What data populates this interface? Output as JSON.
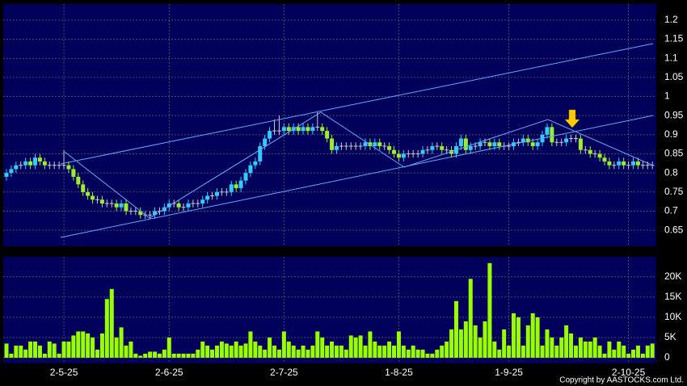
{
  "chart_data": {
    "type": "candlestick",
    "categories": [
      null,
      null,
      null,
      null,
      null,
      null,
      null,
      null,
      null,
      null,
      null,
      null,
      "2-5-25",
      null,
      null,
      null,
      null,
      null,
      null,
      null,
      null,
      null,
      null,
      null,
      null,
      null,
      null,
      null,
      null,
      null,
      null,
      null,
      null,
      null,
      "2-6-25",
      null,
      null,
      null,
      null,
      null,
      null,
      null,
      null,
      null,
      null,
      null,
      null,
      null,
      null,
      null,
      null,
      null,
      null,
      null,
      null,
      null,
      null,
      null,
      "2-7-25",
      null,
      null,
      null,
      null,
      null,
      null,
      null,
      null,
      null,
      null,
      null,
      null,
      null,
      null,
      null,
      null,
      null,
      null,
      null,
      null,
      null,
      null,
      null,
      "1-8-25",
      null,
      null,
      null,
      null,
      null,
      null,
      null,
      null,
      null,
      null,
      null,
      null,
      null,
      null,
      null,
      null,
      null,
      null,
      null,
      null,
      null,
      null,
      "1-9-25",
      null,
      null,
      null,
      null,
      null,
      null,
      null,
      null,
      null,
      null,
      null,
      null,
      null,
      null,
      null,
      null,
      null,
      null,
      null,
      null,
      null,
      null,
      null,
      null,
      "2-10-25",
      null,
      null,
      null,
      null,
      null
    ],
    "open": [
      0.79,
      0.8,
      0.81,
      0.82,
      0.82,
      0.83,
      0.82,
      0.84,
      0.83,
      0.82,
      0.82,
      0.82,
      0.82,
      0.82,
      0.81,
      0.79,
      0.77,
      0.75,
      0.74,
      0.73,
      0.73,
      0.72,
      0.72,
      0.72,
      0.71,
      0.72,
      0.7,
      0.7,
      0.7,
      0.69,
      0.69,
      0.69,
      0.7,
      0.7,
      0.71,
      0.72,
      0.72,
      0.71,
      0.71,
      0.72,
      0.72,
      0.72,
      0.73,
      0.74,
      0.74,
      0.75,
      0.75,
      0.75,
      0.77,
      0.76,
      0.78,
      0.8,
      0.82,
      0.83,
      0.87,
      0.89,
      0.91,
      0.91,
      0.91,
      0.92,
      0.91,
      0.92,
      0.91,
      0.92,
      0.91,
      0.92,
      0.92,
      0.91,
      0.89,
      0.86,
      0.87,
      0.87,
      0.87,
      0.87,
      0.87,
      0.87,
      0.88,
      0.87,
      0.88,
      0.87,
      0.87,
      0.86,
      0.85,
      0.84,
      0.85,
      0.85,
      0.85,
      0.85,
      0.86,
      0.86,
      0.87,
      0.87,
      0.86,
      0.86,
      0.85,
      0.87,
      0.89,
      0.86,
      0.87,
      0.87,
      0.88,
      0.88,
      0.87,
      0.88,
      0.87,
      0.87,
      0.87,
      0.88,
      0.88,
      0.89,
      0.88,
      0.87,
      0.88,
      0.9,
      0.92,
      0.88,
      0.88,
      0.88,
      0.89,
      0.89,
      0.89,
      0.86,
      0.86,
      0.85,
      0.85,
      0.84,
      0.83,
      0.82,
      0.82,
      0.83,
      0.82,
      0.82,
      0.83,
      0.82,
      0.82,
      0.82
    ],
    "high": [
      0.81,
      0.82,
      0.83,
      0.83,
      0.84,
      0.84,
      0.85,
      0.85,
      0.84,
      0.83,
      0.83,
      0.83,
      0.86,
      0.83,
      0.82,
      0.8,
      0.78,
      0.76,
      0.75,
      0.74,
      0.74,
      0.73,
      0.73,
      0.73,
      0.73,
      0.73,
      0.71,
      0.71,
      0.71,
      0.7,
      0.7,
      0.71,
      0.71,
      0.72,
      0.73,
      0.73,
      0.73,
      0.72,
      0.73,
      0.73,
      0.73,
      0.74,
      0.75,
      0.75,
      0.76,
      0.76,
      0.76,
      0.78,
      0.78,
      0.79,
      0.81,
      0.83,
      0.84,
      0.88,
      0.9,
      0.92,
      0.94,
      0.95,
      0.93,
      0.93,
      0.93,
      0.93,
      0.93,
      0.93,
      0.93,
      0.96,
      0.93,
      0.92,
      0.9,
      0.88,
      0.88,
      0.88,
      0.88,
      0.88,
      0.88,
      0.89,
      0.89,
      0.89,
      0.89,
      0.88,
      0.88,
      0.87,
      0.86,
      0.86,
      0.86,
      0.86,
      0.86,
      0.87,
      0.87,
      0.88,
      0.88,
      0.88,
      0.87,
      0.87,
      0.88,
      0.9,
      0.9,
      0.88,
      0.88,
      0.89,
      0.89,
      0.89,
      0.89,
      0.89,
      0.88,
      0.88,
      0.89,
      0.89,
      0.9,
      0.9,
      0.89,
      0.89,
      0.91,
      0.93,
      0.93,
      0.89,
      0.89,
      0.9,
      0.9,
      0.9,
      0.9,
      0.87,
      0.87,
      0.86,
      0.86,
      0.85,
      0.84,
      0.83,
      0.84,
      0.84,
      0.83,
      0.84,
      0.84,
      0.83,
      0.83,
      0.83
    ],
    "low": [
      0.78,
      0.79,
      0.8,
      0.81,
      0.81,
      0.81,
      0.81,
      0.82,
      0.81,
      0.81,
      0.81,
      0.81,
      0.81,
      0.8,
      0.78,
      0.76,
      0.74,
      0.73,
      0.72,
      0.72,
      0.71,
      0.71,
      0.71,
      0.7,
      0.7,
      0.69,
      0.69,
      0.69,
      0.68,
      0.68,
      0.68,
      0.68,
      0.69,
      0.69,
      0.7,
      0.71,
      0.7,
      0.7,
      0.7,
      0.71,
      0.71,
      0.71,
      0.72,
      0.73,
      0.73,
      0.74,
      0.74,
      0.74,
      0.75,
      0.75,
      0.77,
      0.79,
      0.81,
      0.82,
      0.86,
      0.88,
      0.9,
      0.9,
      0.9,
      0.9,
      0.9,
      0.9,
      0.9,
      0.9,
      0.9,
      0.91,
      0.9,
      0.88,
      0.85,
      0.85,
      0.86,
      0.86,
      0.86,
      0.86,
      0.86,
      0.86,
      0.86,
      0.86,
      0.86,
      0.86,
      0.85,
      0.84,
      0.83,
      0.83,
      0.84,
      0.84,
      0.84,
      0.84,
      0.85,
      0.85,
      0.86,
      0.85,
      0.85,
      0.84,
      0.84,
      0.86,
      0.85,
      0.85,
      0.86,
      0.86,
      0.87,
      0.86,
      0.86,
      0.86,
      0.86,
      0.86,
      0.86,
      0.87,
      0.87,
      0.87,
      0.86,
      0.86,
      0.87,
      0.89,
      0.87,
      0.87,
      0.87,
      0.87,
      0.88,
      0.88,
      0.85,
      0.85,
      0.84,
      0.84,
      0.83,
      0.82,
      0.81,
      0.81,
      0.81,
      0.81,
      0.81,
      0.81,
      0.81,
      0.81,
      0.81,
      0.81
    ],
    "close": [
      0.8,
      0.81,
      0.82,
      0.82,
      0.83,
      0.82,
      0.84,
      0.83,
      0.82,
      0.82,
      0.82,
      0.82,
      0.82,
      0.81,
      0.79,
      0.77,
      0.75,
      0.74,
      0.73,
      0.73,
      0.72,
      0.72,
      0.72,
      0.71,
      0.72,
      0.7,
      0.7,
      0.7,
      0.69,
      0.69,
      0.69,
      0.7,
      0.7,
      0.71,
      0.72,
      0.72,
      0.71,
      0.71,
      0.72,
      0.72,
      0.72,
      0.73,
      0.74,
      0.74,
      0.75,
      0.75,
      0.75,
      0.77,
      0.76,
      0.78,
      0.8,
      0.82,
      0.83,
      0.87,
      0.89,
      0.91,
      0.91,
      0.91,
      0.92,
      0.91,
      0.92,
      0.91,
      0.92,
      0.91,
      0.92,
      0.92,
      0.91,
      0.89,
      0.86,
      0.87,
      0.87,
      0.87,
      0.87,
      0.87,
      0.87,
      0.88,
      0.87,
      0.88,
      0.87,
      0.87,
      0.86,
      0.85,
      0.84,
      0.85,
      0.85,
      0.85,
      0.85,
      0.86,
      0.86,
      0.87,
      0.87,
      0.86,
      0.86,
      0.85,
      0.87,
      0.89,
      0.86,
      0.87,
      0.87,
      0.88,
      0.88,
      0.87,
      0.88,
      0.87,
      0.87,
      0.87,
      0.88,
      0.88,
      0.89,
      0.88,
      0.87,
      0.88,
      0.9,
      0.92,
      0.88,
      0.88,
      0.88,
      0.89,
      0.89,
      0.89,
      0.86,
      0.86,
      0.85,
      0.85,
      0.84,
      0.83,
      0.82,
      0.82,
      0.83,
      0.82,
      0.82,
      0.83,
      0.82,
      0.82,
      0.82,
      0.82
    ],
    "volume": [
      3500,
      1000,
      3000,
      3000,
      2000,
      4000,
      4000,
      3000,
      1000,
      4000,
      3500,
      1000,
      4000,
      4000,
      5500,
      6500,
      6500,
      6000,
      5000,
      2000,
      6000,
      14500,
      17000,
      5000,
      7500,
      3000,
      4000,
      1000,
      500,
      1000,
      1500,
      1500,
      1000,
      2000,
      5000,
      1000,
      1000,
      1000,
      1000,
      1000,
      2000,
      4000,
      3000,
      2000,
      3000,
      4000,
      3500,
      3000,
      4000,
      3000,
      3500,
      6500,
      4000,
      3000,
      2000,
      5000,
      3000,
      2000,
      6500,
      4000,
      3000,
      2000,
      3000,
      2000,
      3000,
      6500,
      5000,
      3000,
      4000,
      3000,
      3000,
      2000,
      5500,
      5000,
      5500,
      3000,
      6500,
      4000,
      3000,
      3000,
      4000,
      3000,
      6500,
      3000,
      2000,
      3000,
      2000,
      2000,
      1000,
      1000,
      2000,
      3000,
      4000,
      7000,
      14000,
      7000,
      9000,
      19500,
      8000,
      5000,
      9000,
      23400,
      4000,
      2000,
      7000,
      3000,
      11000,
      10000,
      3000,
      8000,
      11000,
      10000,
      3000,
      7000,
      5000,
      3000,
      5000,
      8000,
      6000,
      3000,
      5000,
      4000,
      4000,
      5000,
      3000,
      1000,
      4000,
      2000,
      4000,
      3000,
      1000,
      2000,
      3000,
      1000,
      3000,
      3500
    ],
    "up_color": "#33ccff",
    "down_color": "#99ee33",
    "flat_color": "#cccccc",
    "volume_color": "#99ff00",
    "ylim": [
      0.608,
      1.242
    ],
    "yticks": [
      1.2,
      1.15,
      1.1,
      1.05,
      1,
      0.95,
      0.9,
      0.85,
      0.8,
      0.75,
      0.7,
      0.65
    ],
    "volume_ylim": [
      -1400,
      24950
    ],
    "volume_ticks": [
      {
        "value": 20000,
        "label": "20K"
      },
      {
        "value": 15000,
        "label": "15K"
      },
      {
        "value": 10000,
        "label": "10K"
      },
      {
        "value": 5000,
        "label": "5K"
      },
      0
    ],
    "grid": true,
    "copyright": "Copyright by AASTOCKS.com Ltd."
  }
}
